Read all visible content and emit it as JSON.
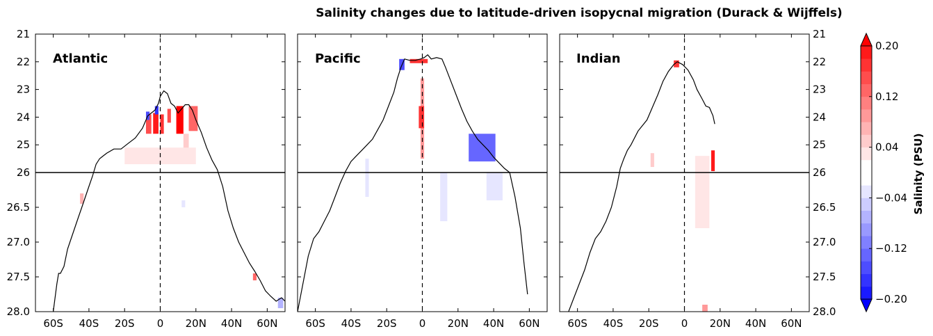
{
  "title": "Salinity changes due to latitude-driven isopycnal migration (Durack & Wijffels)",
  "colorbar": {
    "label": "Salinity (PSU)",
    "ticks": [
      "0.20",
      "0.12",
      "0.04",
      "−0.04",
      "−0.12",
      "−0.20"
    ],
    "tick_values": [
      0.2,
      0.12,
      0.04,
      -0.04,
      -0.12,
      -0.2
    ],
    "levels": [
      -0.2,
      -0.18,
      -0.16,
      -0.14,
      -0.12,
      -0.1,
      -0.08,
      -0.06,
      -0.04,
      -0.02,
      0,
      0.02,
      0.04,
      0.06,
      0.08,
      0.1,
      0.12,
      0.14,
      0.16,
      0.18,
      0.2
    ],
    "colors": [
      "#0000ff",
      "#1a1aff",
      "#3333ff",
      "#4d4dff",
      "#6666ff",
      "#8080ff",
      "#9999ff",
      "#b3b3ff",
      "#ccccff",
      "#e6e6ff",
      "#ffffff",
      "#ffffff",
      "#ffe6e6",
      "#ffcccc",
      "#ffb3b3",
      "#ff9999",
      "#ff8080",
      "#ff6666",
      "#ff4d4d",
      "#ff3333",
      "#ff1a1a",
      "#ff0000"
    ],
    "extend": "both"
  },
  "y_axis": {
    "ticks": [
      "21",
      "22",
      "23",
      "24",
      "25",
      "26",
      "26.5",
      "27.0",
      "27.5",
      "28.0"
    ],
    "break_at": "26",
    "note": "upper segment linear 21-26, lower segment linear 26-28"
  },
  "x_axis": {
    "ticks": [
      "60S",
      "40S",
      "20S",
      "0",
      "20N",
      "40N",
      "60N"
    ],
    "tick_values": [
      -60,
      -40,
      -20,
      0,
      20,
      40,
      60
    ],
    "xlim": [
      -70,
      70
    ]
  },
  "chart_data": [
    {
      "type": "heatmap",
      "name": "Atlantic",
      "xlabel": "",
      "ylabel": "",
      "xlim": [
        -70,
        70
      ],
      "ylim": [
        28.0,
        21
      ],
      "outcrop": [
        [
          -60,
          28.0
        ],
        [
          -58,
          27.6
        ],
        [
          -57,
          27.45
        ],
        [
          -56,
          27.45
        ],
        [
          -54,
          27.35
        ],
        [
          -52,
          27.1
        ],
        [
          -50,
          26.95
        ],
        [
          -48,
          26.8
        ],
        [
          -46,
          26.65
        ],
        [
          -44,
          26.5
        ],
        [
          -42,
          26.35
        ],
        [
          -40,
          26.2
        ],
        [
          -38,
          26.05
        ],
        [
          -36,
          25.7
        ],
        [
          -34,
          25.5
        ],
        [
          -32,
          25.4
        ],
        [
          -30,
          25.3
        ],
        [
          -26,
          25.15
        ],
        [
          -22,
          25.15
        ],
        [
          -18,
          24.95
        ],
        [
          -14,
          24.75
        ],
        [
          -10,
          24.4
        ],
        [
          -7,
          23.95
        ],
        [
          -5,
          23.85
        ],
        [
          -3,
          23.75
        ],
        [
          -1,
          23.5
        ],
        [
          0,
          23.25
        ],
        [
          2,
          23.05
        ],
        [
          4,
          23.15
        ],
        [
          6,
          23.5
        ],
        [
          8,
          23.6
        ],
        [
          10,
          23.85
        ],
        [
          12,
          23.7
        ],
        [
          14,
          23.55
        ],
        [
          16,
          23.55
        ],
        [
          18,
          23.75
        ],
        [
          20,
          24.1
        ],
        [
          23,
          24.55
        ],
        [
          26,
          25.1
        ],
        [
          29,
          25.55
        ],
        [
          32,
          25.9
        ],
        [
          35,
          26.2
        ],
        [
          38,
          26.55
        ],
        [
          41,
          26.8
        ],
        [
          44,
          27.0
        ],
        [
          47,
          27.15
        ],
        [
          50,
          27.3
        ],
        [
          53,
          27.42
        ],
        [
          56,
          27.55
        ],
        [
          59,
          27.7
        ],
        [
          62,
          27.78
        ],
        [
          65,
          27.85
        ],
        [
          68,
          27.8
        ],
        [
          70,
          27.85
        ]
      ],
      "anomalies": [
        {
          "lat": [
            -8,
            -5
          ],
          "rho": [
            23.9,
            24.6
          ],
          "value": 0.14
        },
        {
          "lat": [
            -4,
            -1
          ],
          "rho": [
            23.85,
            24.6
          ],
          "value": 0.18
        },
        {
          "lat": [
            0,
            2
          ],
          "rho": [
            23.9,
            24.6
          ],
          "value": 0.16
        },
        {
          "lat": [
            4,
            6
          ],
          "rho": [
            23.7,
            24.2
          ],
          "value": 0.14
        },
        {
          "lat": [
            9,
            13
          ],
          "rho": [
            23.6,
            24.6
          ],
          "value": 0.2
        },
        {
          "lat": [
            16,
            21
          ],
          "rho": [
            23.6,
            24.5
          ],
          "value": 0.12
        },
        {
          "lat": [
            13,
            16
          ],
          "rho": [
            24.6,
            25.4
          ],
          "value": 0.04
        },
        {
          "lat": [
            -20,
            20
          ],
          "rho": [
            25.1,
            25.7
          ],
          "value": 0.03
        },
        {
          "lat": [
            -8,
            -6
          ],
          "rho": [
            23.8,
            24.1
          ],
          "value": -0.16
        },
        {
          "lat": [
            -3,
            -1
          ],
          "rho": [
            23.6,
            23.9
          ],
          "value": -0.18
        },
        {
          "lat": [
            -45,
            -43
          ],
          "rho": [
            26.3,
            26.45
          ],
          "value": 0.06
        },
        {
          "lat": [
            52,
            54
          ],
          "rho": [
            27.45,
            27.55
          ],
          "value": 0.12
        },
        {
          "lat": [
            12,
            14
          ],
          "rho": [
            26.4,
            26.5
          ],
          "value": -0.04
        },
        {
          "lat": [
            66,
            69
          ],
          "rho": [
            27.8,
            27.95
          ],
          "value": -0.08
        }
      ]
    },
    {
      "type": "heatmap",
      "name": "Pacific",
      "xlabel": "",
      "ylabel": "",
      "xlim": [
        -70,
        70
      ],
      "ylim": [
        28.0,
        21
      ],
      "outcrop": [
        [
          -70,
          28.0
        ],
        [
          -67,
          27.6
        ],
        [
          -64,
          27.2
        ],
        [
          -61,
          26.95
        ],
        [
          -58,
          26.85
        ],
        [
          -55,
          26.7
        ],
        [
          -52,
          26.55
        ],
        [
          -49,
          26.35
        ],
        [
          -46,
          26.15
        ],
        [
          -43,
          25.95
        ],
        [
          -40,
          25.6
        ],
        [
          -37,
          25.4
        ],
        [
          -34,
          25.2
        ],
        [
          -31,
          25.0
        ],
        [
          -28,
          24.8
        ],
        [
          -25,
          24.45
        ],
        [
          -22,
          24.1
        ],
        [
          -19,
          23.6
        ],
        [
          -16,
          23.1
        ],
        [
          -14,
          22.6
        ],
        [
          -12,
          22.2
        ],
        [
          -10,
          21.9
        ],
        [
          -7,
          21.95
        ],
        [
          -4,
          21.95
        ],
        [
          -1,
          21.9
        ],
        [
          1,
          21.85
        ],
        [
          3,
          21.75
        ],
        [
          5,
          21.9
        ],
        [
          8,
          21.85
        ],
        [
          11,
          21.9
        ],
        [
          13,
          22.2
        ],
        [
          16,
          22.7
        ],
        [
          19,
          23.2
        ],
        [
          22,
          23.7
        ],
        [
          25,
          24.15
        ],
        [
          28,
          24.5
        ],
        [
          31,
          24.8
        ],
        [
          34,
          25.0
        ],
        [
          37,
          25.2
        ],
        [
          40,
          25.45
        ],
        [
          43,
          25.65
        ],
        [
          46,
          25.85
        ],
        [
          49,
          26.0
        ],
        [
          52,
          26.35
        ],
        [
          55,
          26.8
        ],
        [
          57,
          27.3
        ],
        [
          59,
          27.75
        ]
      ],
      "anomalies": [
        {
          "lat": [
            -1,
            1
          ],
          "rho": [
            22.6,
            25.5
          ],
          "value": 0.08
        },
        {
          "lat": [
            -2,
            1
          ],
          "rho": [
            23.6,
            24.4
          ],
          "value": 0.16
        },
        {
          "lat": [
            26,
            41
          ],
          "rho": [
            24.6,
            25.6
          ],
          "value": -0.14
        },
        {
          "lat": [
            -13,
            -10
          ],
          "rho": [
            21.9,
            22.3
          ],
          "value": -0.16
        },
        {
          "lat": [
            -7,
            3
          ],
          "rho": [
            21.9,
            22.05
          ],
          "value": 0.16
        },
        {
          "lat": [
            10,
            14
          ],
          "rho": [
            26.0,
            26.7
          ],
          "value": -0.04
        },
        {
          "lat": [
            -32,
            -30
          ],
          "rho": [
            25.5,
            26.35
          ],
          "value": -0.04
        },
        {
          "lat": [
            36,
            45
          ],
          "rho": [
            26.0,
            26.4
          ],
          "value": -0.04
        }
      ]
    },
    {
      "type": "heatmap",
      "name": "Indian",
      "xlabel": "",
      "ylabel": "",
      "xlim": [
        -70,
        70
      ],
      "ylim": [
        28.0,
        21
      ],
      "outcrop": [
        [
          -65,
          28.0
        ],
        [
          -62,
          27.8
        ],
        [
          -59,
          27.6
        ],
        [
          -56,
          27.4
        ],
        [
          -53,
          27.15
        ],
        [
          -50,
          26.95
        ],
        [
          -47,
          26.85
        ],
        [
          -44,
          26.7
        ],
        [
          -41,
          26.5
        ],
        [
          -38,
          26.2
        ],
        [
          -36,
          25.85
        ],
        [
          -34,
          25.5
        ],
        [
          -32,
          25.2
        ],
        [
          -30,
          25.0
        ],
        [
          -26,
          24.5
        ],
        [
          -21,
          24.1
        ],
        [
          -18,
          23.65
        ],
        [
          -15,
          23.2
        ],
        [
          -12,
          22.7
        ],
        [
          -9,
          22.35
        ],
        [
          -6,
          22.1
        ],
        [
          -4,
          22.0
        ],
        [
          -1,
          22.1
        ],
        [
          2,
          22.3
        ],
        [
          5,
          22.65
        ],
        [
          7,
          23.0
        ],
        [
          10,
          23.35
        ],
        [
          12,
          23.6
        ],
        [
          14,
          23.65
        ],
        [
          16,
          23.95
        ],
        [
          17,
          24.25
        ]
      ],
      "anomalies": [
        {
          "lat": [
            -6,
            -3
          ],
          "rho": [
            21.95,
            22.2
          ],
          "value": 0.16
        },
        {
          "lat": [
            15,
            17
          ],
          "rho": [
            25.2,
            25.95
          ],
          "value": 0.18
        },
        {
          "lat": [
            6,
            14
          ],
          "rho": [
            25.4,
            26.8
          ],
          "value": 0.03
        },
        {
          "lat": [
            -19,
            -17
          ],
          "rho": [
            25.3,
            25.8
          ],
          "value": 0.04
        },
        {
          "lat": [
            10,
            13
          ],
          "rho": [
            27.9,
            28.0
          ],
          "value": 0.08
        }
      ]
    }
  ]
}
